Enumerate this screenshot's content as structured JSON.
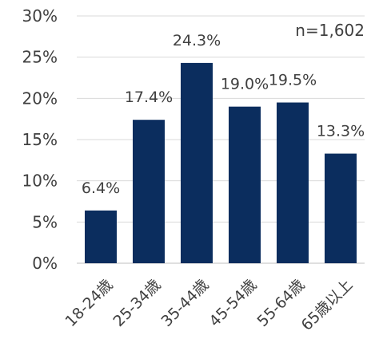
{
  "chart_data": {
    "type": "bar",
    "categories": [
      "18-24歳",
      "25-34歳",
      "35-44歳",
      "45-54歳",
      "55-64歳",
      "65歳以上"
    ],
    "values": [
      6.4,
      17.4,
      24.3,
      19.0,
      19.5,
      13.3
    ],
    "data_labels": [
      "6.4%",
      "17.4%",
      "24.3%",
      "19.0%",
      "19.5%",
      "13.3%"
    ],
    "title": "",
    "xlabel": "",
    "ylabel": "",
    "ylim": [
      0,
      30
    ],
    "yticks": [
      0,
      5,
      10,
      15,
      20,
      25,
      30
    ],
    "ytick_labels": [
      "0%",
      "5%",
      "10%",
      "15%",
      "20%",
      "25%",
      "30%"
    ],
    "annotation": "n=1,602",
    "grid": true,
    "bar_color": "#0b2d5e",
    "grid_color": "#d9d9d9",
    "axis_color": "#bfbfbf",
    "text_color": "#404040"
  }
}
